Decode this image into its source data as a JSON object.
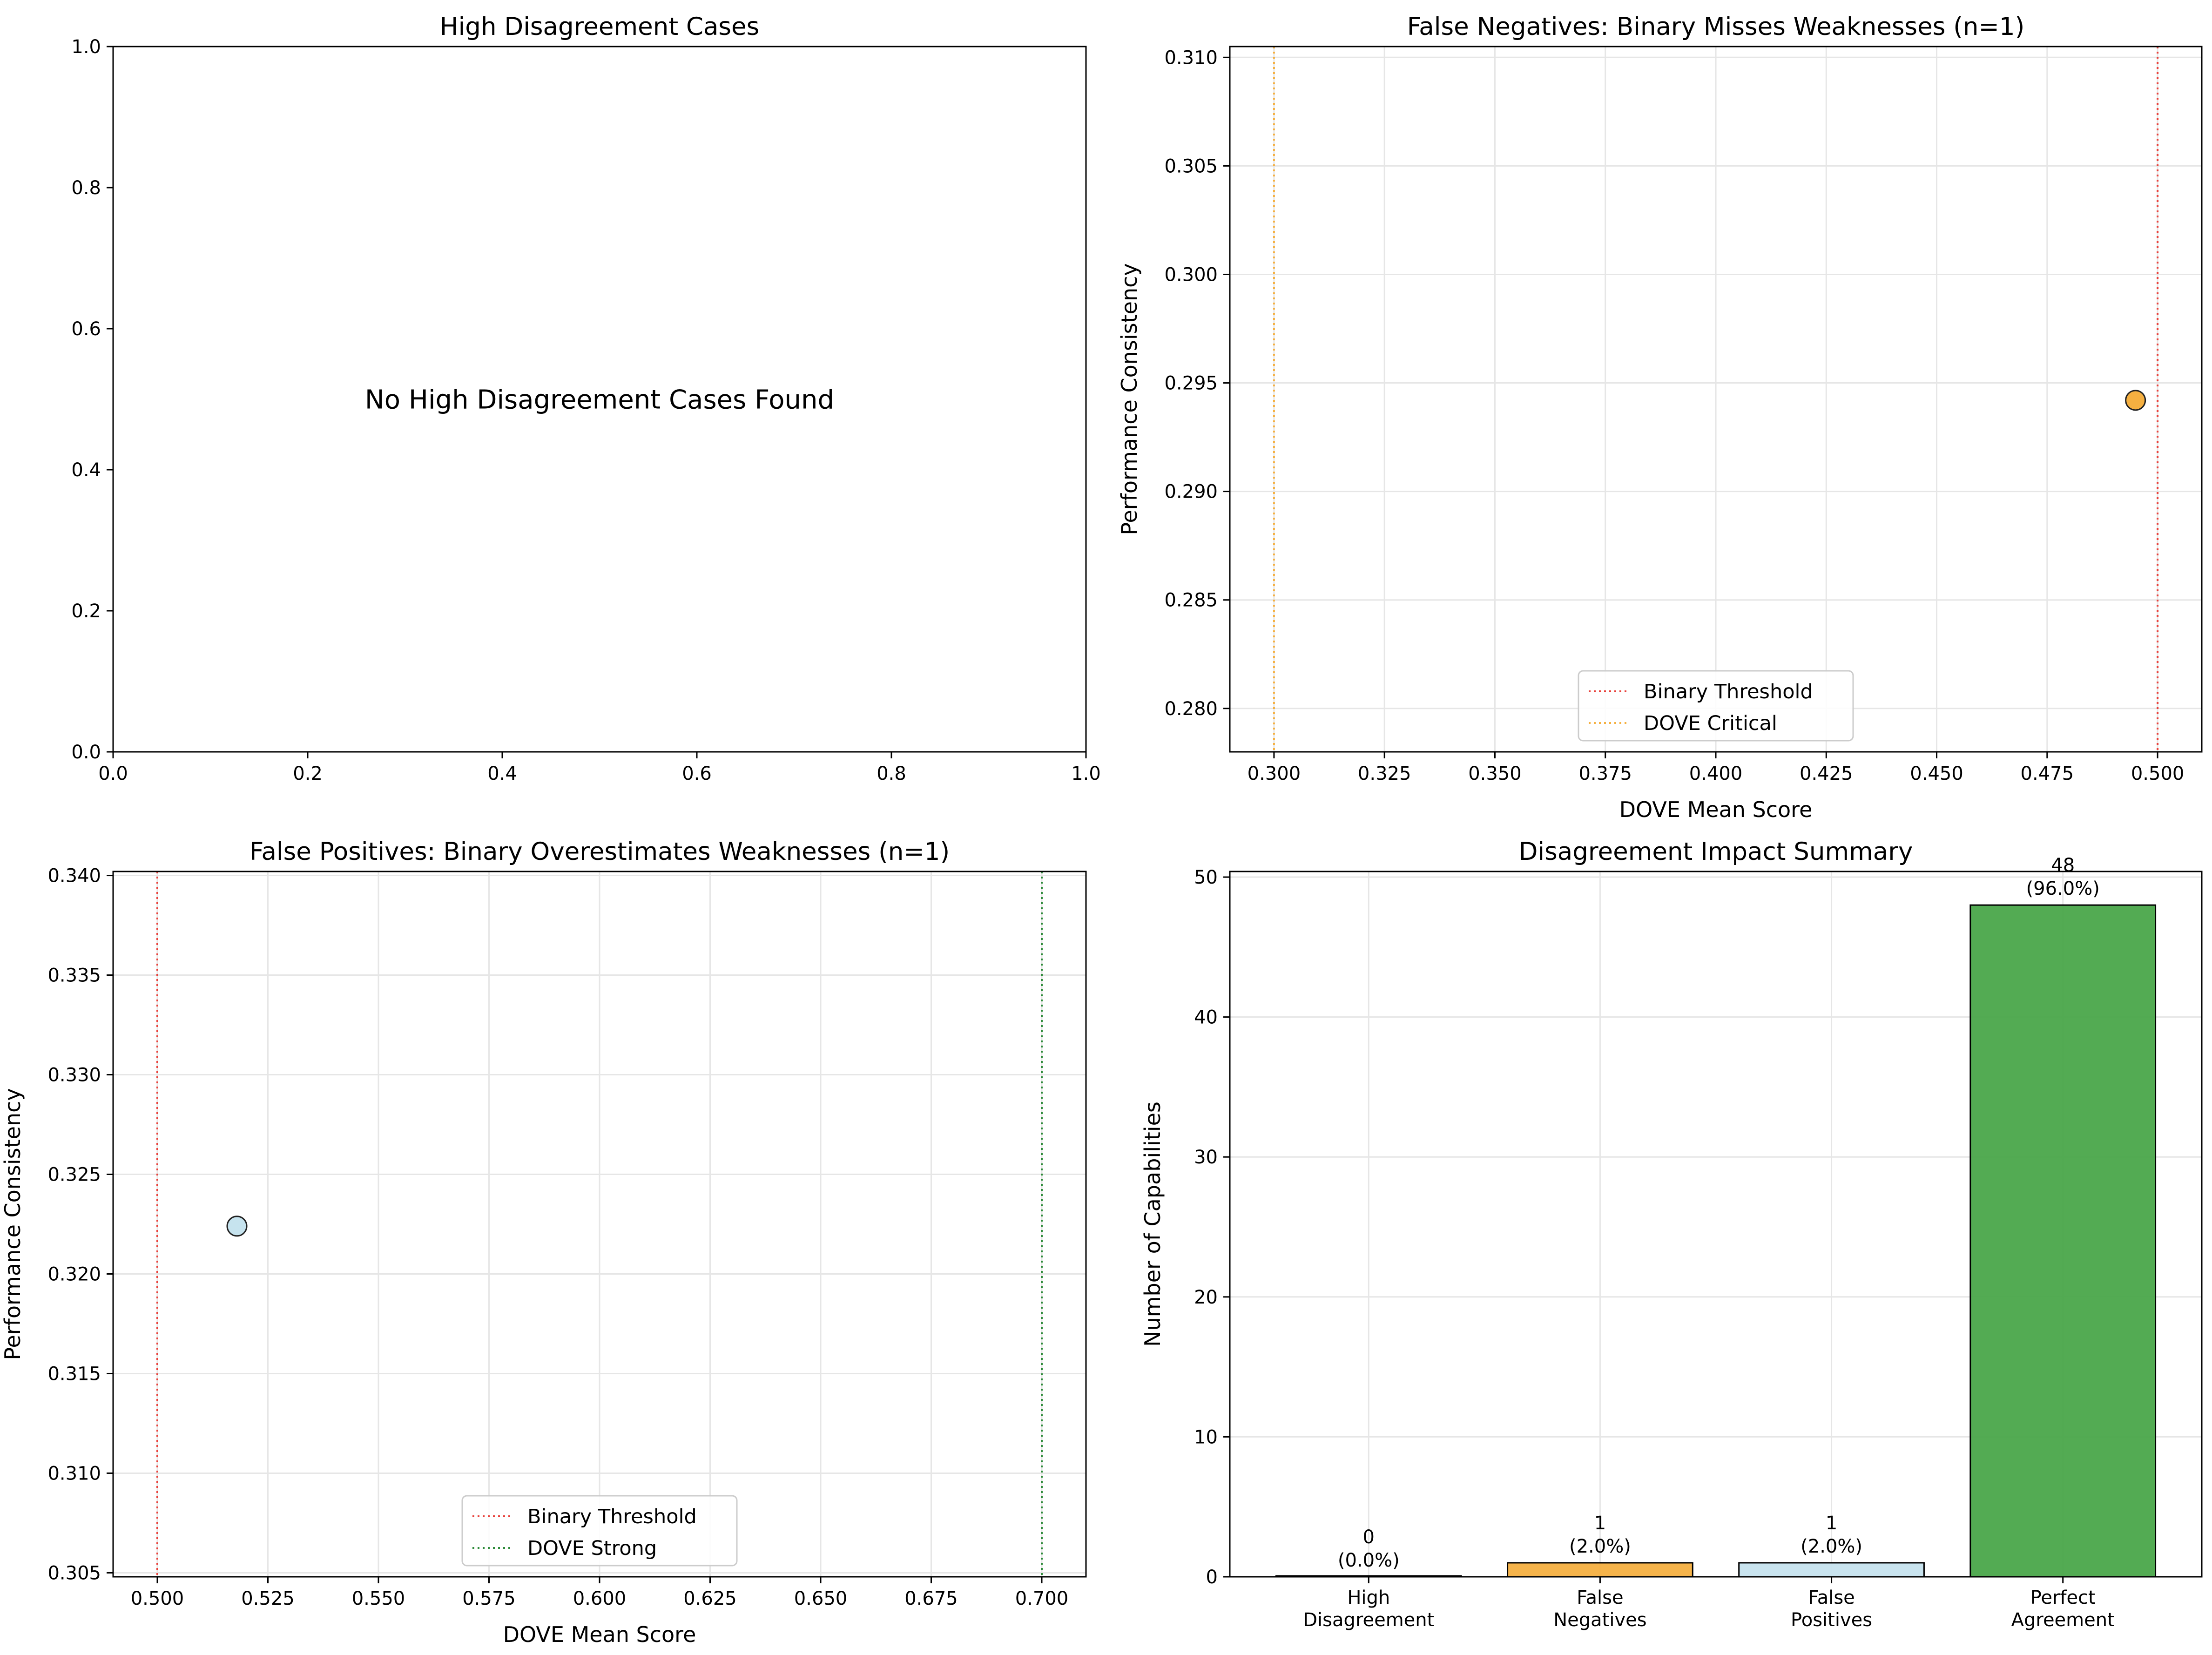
{
  "chart_data": [
    {
      "type": "scatter",
      "title": "High Disagreement Cases",
      "xlabel": "",
      "ylabel": "",
      "xlim": [
        0,
        1
      ],
      "ylim": [
        0,
        1
      ],
      "xticks": [
        "0.0",
        "0.2",
        "0.4",
        "0.6",
        "0.8",
        "1.0"
      ],
      "yticks": [
        "0.0",
        "0.2",
        "0.4",
        "0.6",
        "0.8",
        "1.0"
      ],
      "grid": false,
      "message": "No High Disagreement Cases Found",
      "points": []
    },
    {
      "type": "scatter",
      "title": "False Negatives: Binary Misses Weaknesses (n=1)",
      "xlabel": "DOVE Mean Score",
      "ylabel": "Performance Consistency",
      "xlim": [
        0.29,
        0.51
      ],
      "ylim": [
        0.278,
        0.3105
      ],
      "xticks": [
        "0.300",
        "0.325",
        "0.350",
        "0.375",
        "0.400",
        "0.425",
        "0.450",
        "0.475",
        "0.500"
      ],
      "yticks": [
        "0.280",
        "0.285",
        "0.290",
        "0.295",
        "0.300",
        "0.305",
        "0.310"
      ],
      "grid": true,
      "points": [
        {
          "x": 0.495,
          "y": 0.2942,
          "color": "#f5b041"
        }
      ],
      "vlines": [
        {
          "x": 0.5,
          "color": "#e8413b",
          "label": "Binary Threshold"
        },
        {
          "x": 0.3,
          "color": "#f5b041",
          "label": "DOVE Critical"
        }
      ],
      "legend": "lower center"
    },
    {
      "type": "scatter",
      "title": "False Positives: Binary Overestimates Weaknesses (n=1)",
      "xlabel": "DOVE Mean Score",
      "ylabel": "Performance Consistency",
      "xlim": [
        0.49,
        0.71
      ],
      "ylim": [
        0.3048,
        0.3402
      ],
      "xticks": [
        "0.500",
        "0.525",
        "0.550",
        "0.575",
        "0.600",
        "0.625",
        "0.650",
        "0.675",
        "0.700"
      ],
      "yticks": [
        "0.305",
        "0.310",
        "0.315",
        "0.320",
        "0.325",
        "0.330",
        "0.335",
        "0.340"
      ],
      "grid": true,
      "points": [
        {
          "x": 0.518,
          "y": 0.3224,
          "color": "#c6e3ee"
        }
      ],
      "vlines": [
        {
          "x": 0.5,
          "color": "#e8413b",
          "label": "Binary Threshold"
        },
        {
          "x": 0.7,
          "color": "#2e8b3a",
          "label": "DOVE Strong"
        }
      ],
      "legend": "lower center"
    },
    {
      "type": "bar",
      "title": "Disagreement Impact Summary",
      "xlabel": "",
      "ylabel": "Number of Capabilities",
      "ylim": [
        0,
        50.4
      ],
      "yticks": [
        "0",
        "10",
        "20",
        "30",
        "40",
        "50"
      ],
      "grid": true,
      "categories": [
        [
          "High",
          "Disagreement"
        ],
        [
          "False",
          "Negatives"
        ],
        [
          "False",
          "Positives"
        ],
        [
          "Perfect",
          "Agreement"
        ]
      ],
      "values": [
        0,
        1,
        1,
        48
      ],
      "labels": [
        [
          "0",
          "(0.0%)"
        ],
        [
          "1",
          "(2.0%)"
        ],
        [
          "1",
          "(2.0%)"
        ],
        [
          "48",
          "(96.0%)"
        ]
      ],
      "colors": [
        "#e06666",
        "#f5b041",
        "#c6e3ee",
        "#4aa64a"
      ]
    }
  ]
}
